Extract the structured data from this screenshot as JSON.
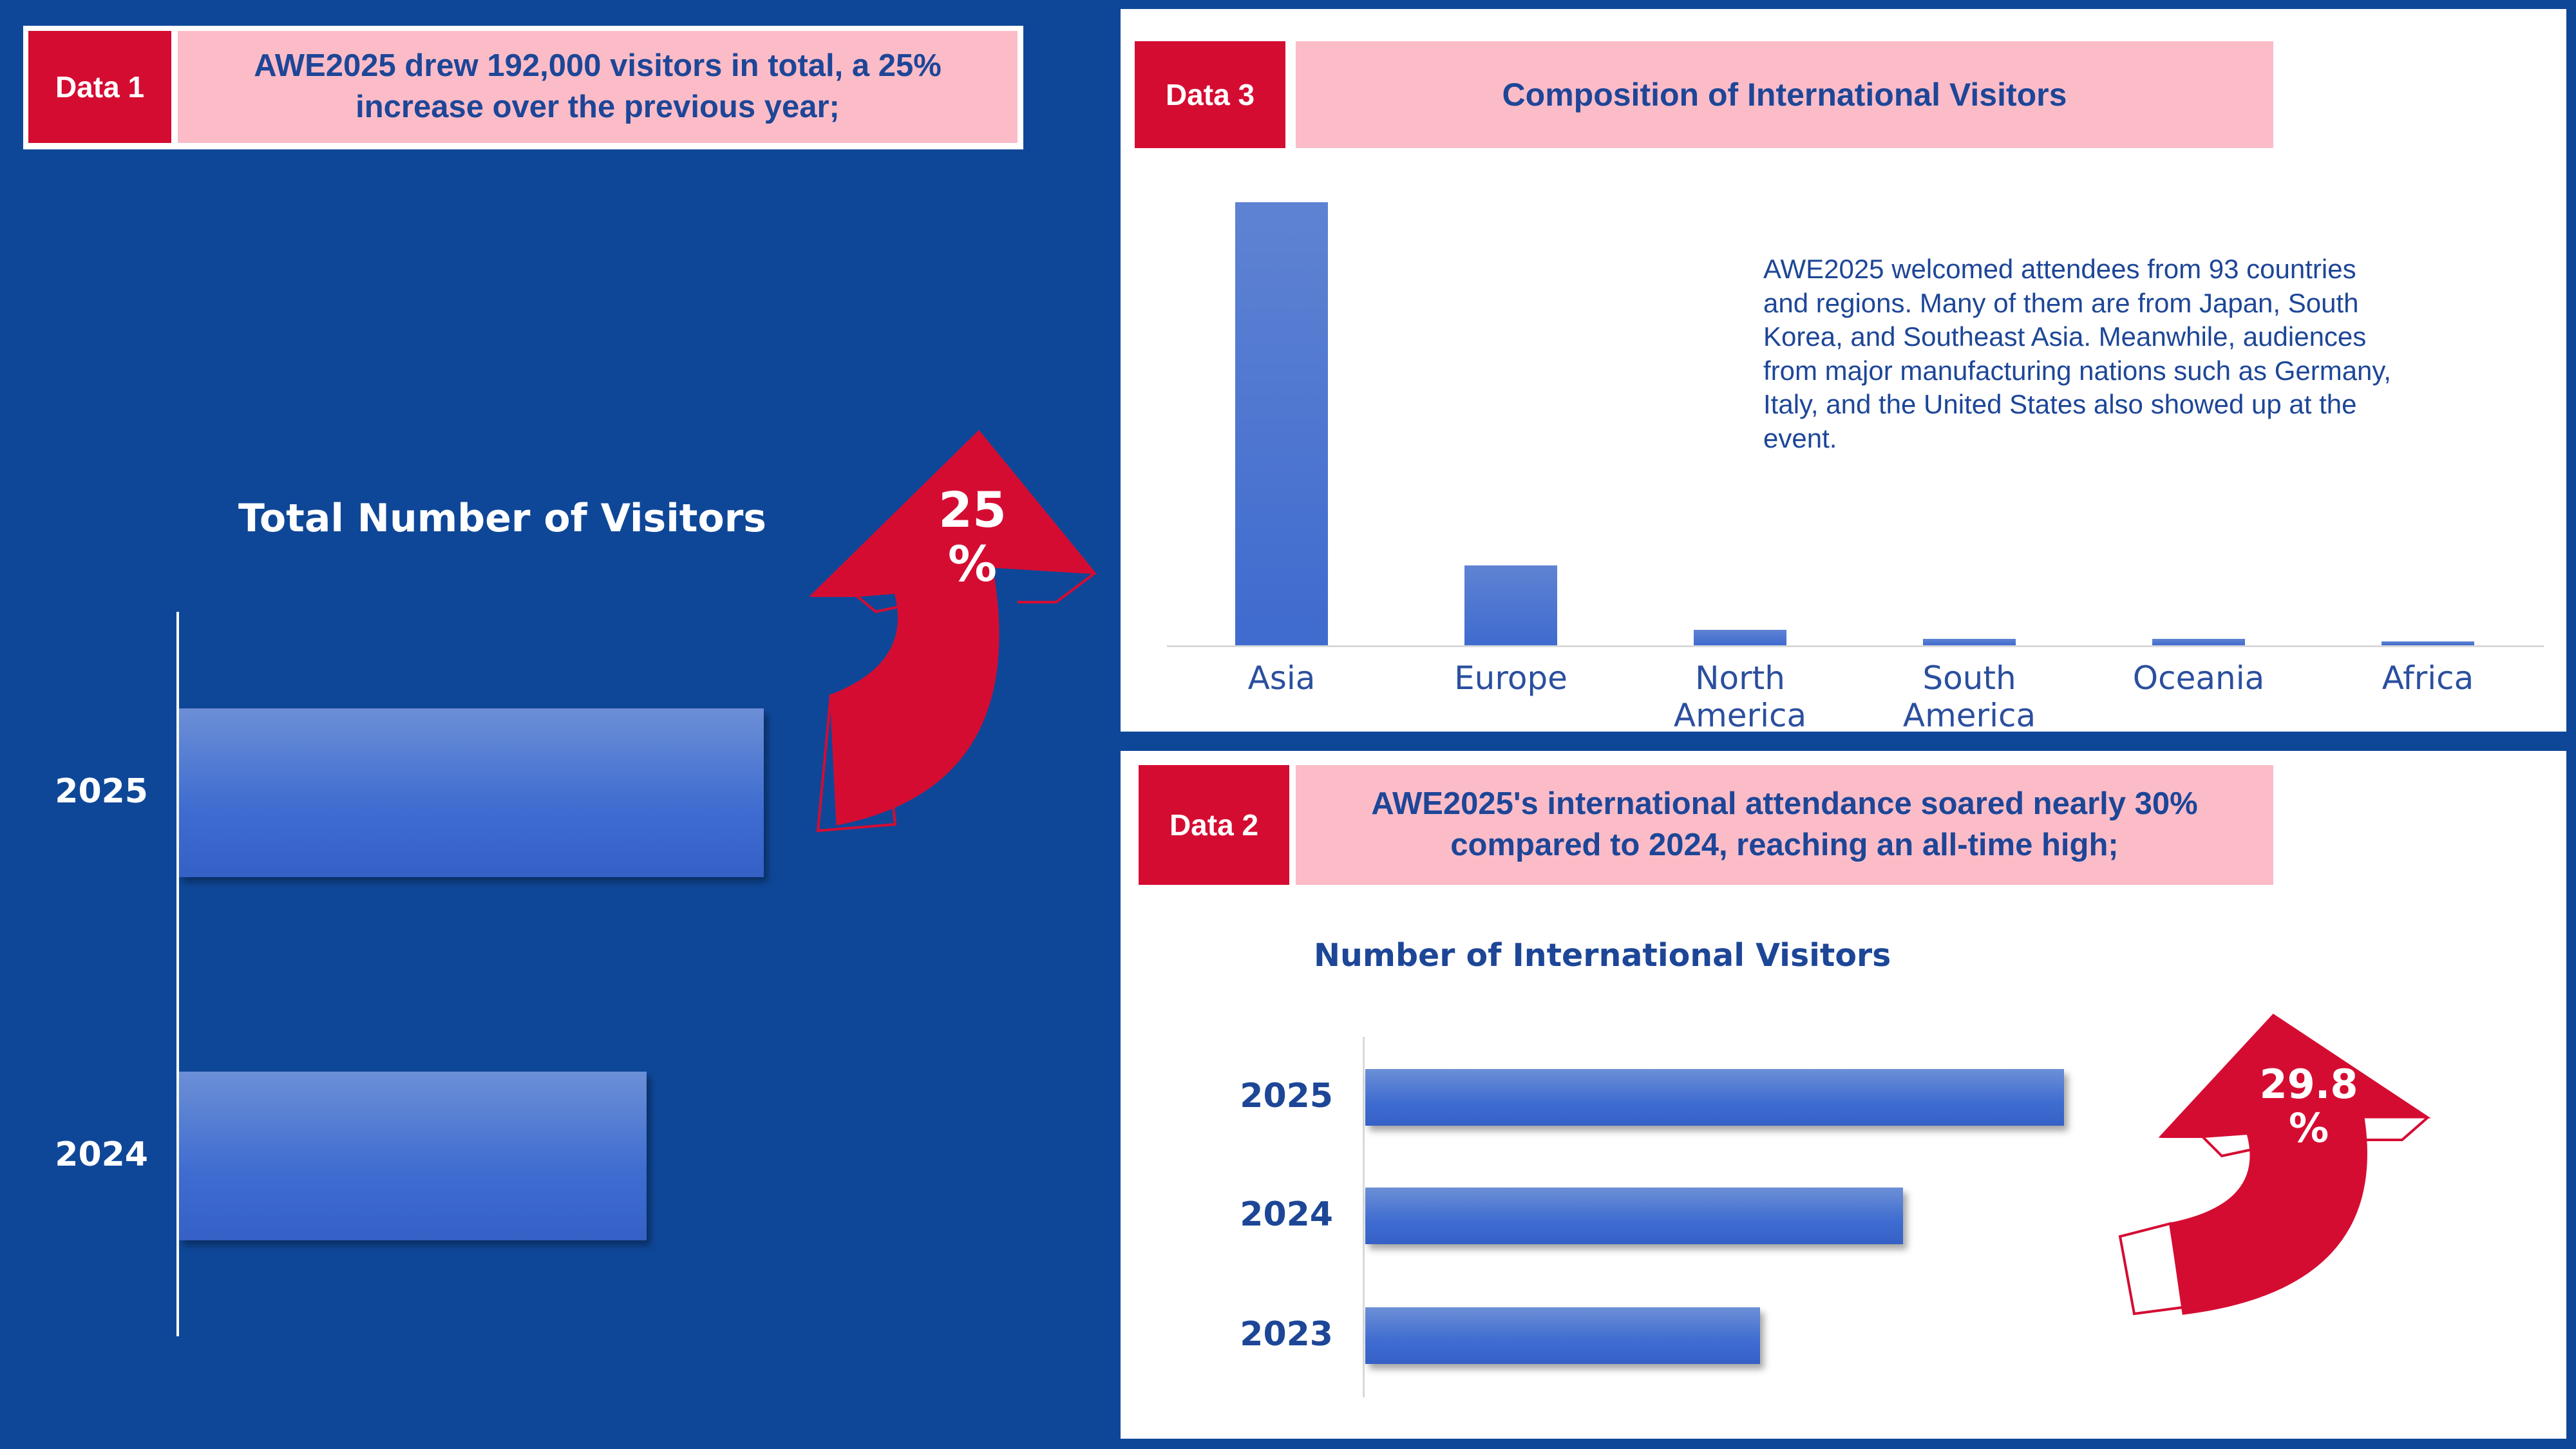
{
  "data1": {
    "tag": "Data 1",
    "headline": "AWE2025 drew 192,000 visitors in total, a 25% increase over the previous year;"
  },
  "data3": {
    "tag": "Data 3",
    "headline": "Composition of International Visitors",
    "description": "AWE2025 welcomed attendees from 93 countries and regions. Many of them are from Japan, South Korea, and Southeast Asia. Meanwhile, audiences from major manufacturing nations such as Germany, Italy, and the United States also showed up at the event."
  },
  "data2": {
    "tag": "Data 2",
    "headline": "AWE2025's international attendance soared nearly 30% compared to 2024, reaching an all-time high;"
  },
  "arrows": {
    "total_growth": "25\n%",
    "intl_growth": "29.8\n%",
    "color": "#d50c32"
  },
  "colors": {
    "background": "#0f4798",
    "tag": "#d50c32",
    "pink": "#fbbcc8",
    "bar": "#4472c4"
  },
  "chart_data": [
    {
      "id": "total",
      "type": "bar",
      "orientation": "horizontal",
      "title": "Total Number of Visitors",
      "categories": [
        "2025",
        "2024"
      ],
      "values": [
        192000,
        153600
      ],
      "xlim": [
        0,
        220000
      ],
      "grid": false
    },
    {
      "id": "composition",
      "type": "bar",
      "orientation": "vertical",
      "title": "",
      "categories": [
        "Asia",
        "Europe",
        "North America",
        "South America",
        "Oceania",
        "Africa"
      ],
      "values": [
        100,
        18,
        3.5,
        1.5,
        1.5,
        0.8
      ],
      "ylim": [
        0,
        100
      ],
      "grid": false
    },
    {
      "id": "intl",
      "type": "bar",
      "orientation": "horizontal",
      "title": "Number of International Visitors",
      "categories": [
        "2025",
        "2024",
        "2023"
      ],
      "values": [
        100,
        77,
        56.5
      ],
      "xlim": [
        0,
        100
      ],
      "grid": false
    }
  ]
}
